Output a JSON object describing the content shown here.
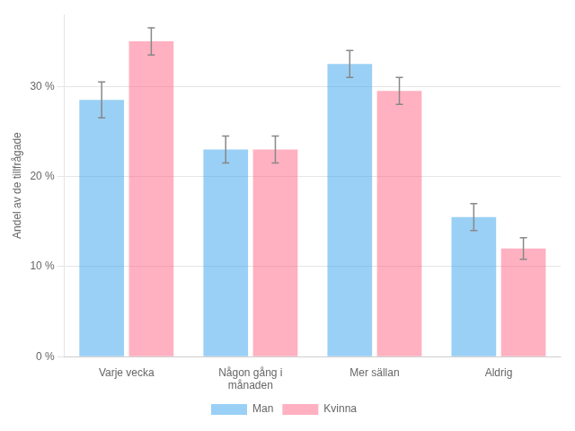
{
  "chart_data": {
    "type": "bar",
    "ylabel": "Andel av de tillfrågade",
    "categories": [
      "Varje vecka",
      "Någon gång i\nmånaden",
      "Mer sällan",
      "Aldrig"
    ],
    "series": [
      {
        "name": "Man",
        "values": [
          28.5,
          23.0,
          32.5,
          15.5
        ],
        "errors": [
          2.0,
          1.5,
          1.5,
          1.5
        ]
      },
      {
        "name": "Kvinna",
        "values": [
          35.0,
          23.0,
          29.5,
          12.0
        ],
        "errors": [
          1.5,
          1.5,
          1.5,
          1.2
        ]
      }
    ],
    "ylim": [
      0,
      38
    ],
    "yticks": [
      {
        "value": 0,
        "label": "0 %"
      },
      {
        "value": 10,
        "label": "10 %"
      },
      {
        "value": 20,
        "label": "20 %"
      },
      {
        "value": 30,
        "label": "30 %"
      }
    ],
    "grid": true,
    "legend": "bottom"
  }
}
